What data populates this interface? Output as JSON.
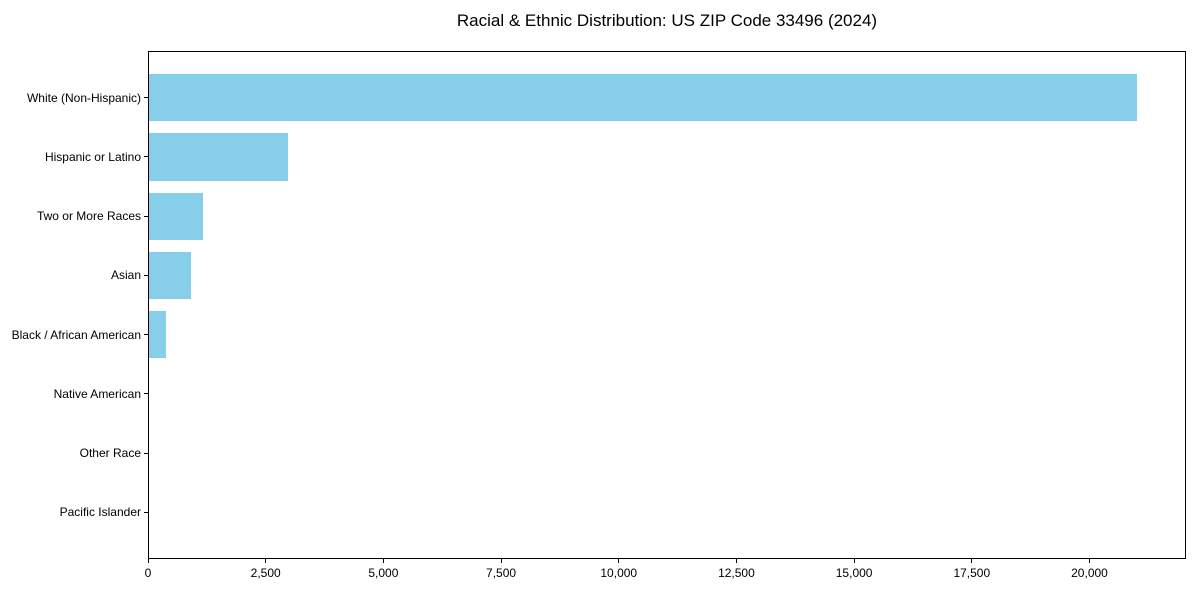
{
  "chart_data": {
    "type": "bar",
    "orientation": "horizontal",
    "title": "Racial & Ethnic Distribution: US ZIP Code 33496 (2024)",
    "categories": [
      "White (Non-Hispanic)",
      "Hispanic or Latino",
      "Two or More Races",
      "Asian",
      "Black / African American",
      "Native American",
      "Other Race",
      "Pacific Islander"
    ],
    "values": [
      21000,
      2980,
      1170,
      910,
      385,
      20,
      15,
      0
    ],
    "xlabel": "",
    "ylabel": "",
    "xlim": [
      0,
      22050
    ],
    "xticks": [
      0,
      2500,
      5000,
      7500,
      10000,
      12500,
      15000,
      17500,
      20000
    ],
    "xtick_labels": [
      "0",
      "2,500",
      "5,000",
      "7,500",
      "10,000",
      "12,500",
      "15,000",
      "17,500",
      "20,000"
    ],
    "bar_color": "#87CEEB",
    "frame_color": "#000000",
    "text_color": "#000000",
    "grid": false,
    "legend": "none"
  }
}
